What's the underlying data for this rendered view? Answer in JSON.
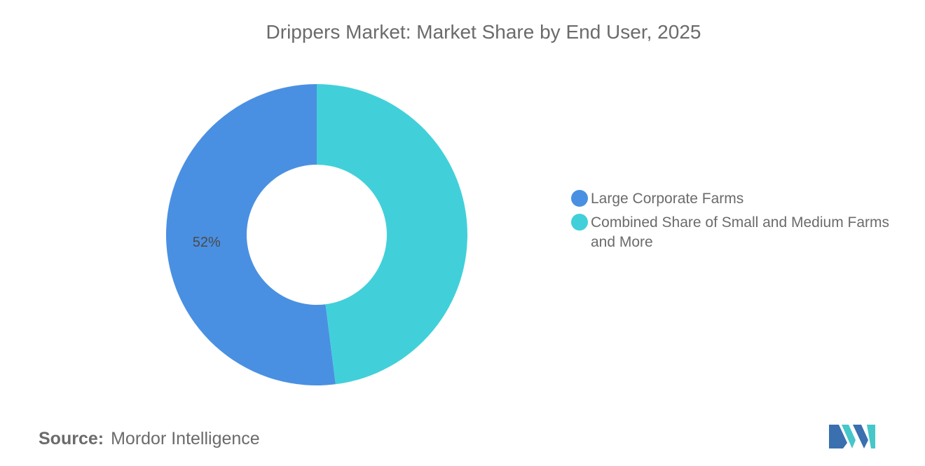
{
  "title": "Drippers Market: Market Share by End User, 2025",
  "source": {
    "label": "Source:",
    "value": "Mordor Intelligence"
  },
  "logo": {
    "icon": "mordor-intelligence-logo",
    "colors": [
      "#3a6fb0",
      "#46c7c9"
    ]
  },
  "chart_data": {
    "type": "pie",
    "donut": true,
    "title": "Drippers Market: Market Share by End User, 2025",
    "legend_position": "right",
    "series": [
      {
        "name": "Large Corporate Farms",
        "value": 52,
        "label": "52%",
        "color": "#4a90e2"
      },
      {
        "name": "Combined Share of Small and Medium Farms and More",
        "value": 48,
        "label": "",
        "color": "#41d0da"
      }
    ]
  }
}
